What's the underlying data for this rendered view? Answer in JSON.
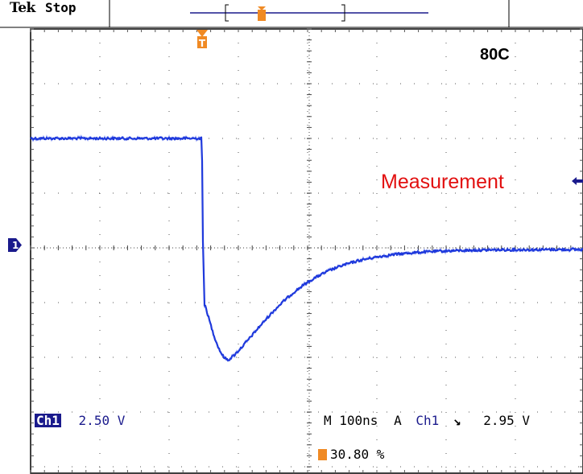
{
  "header": {
    "brand": "Tek",
    "status": "Stop"
  },
  "annotations": {
    "temperature": "80C",
    "measurement": "Measurement"
  },
  "readouts": {
    "channel": "Ch1",
    "volts_per_div": "2.50 V",
    "timebase": "M 100ns",
    "trigger_mode": "A",
    "trigger_source": "Ch1",
    "trigger_slope_symbol": "↙",
    "trigger_level": "2.95 V",
    "trigger_position": "30.80 %"
  },
  "colors": {
    "trace": "#1a33d6",
    "readout": "#1a1a8c",
    "trigger_marker": "#f08a24",
    "annotation": "#e21010"
  },
  "icons": {
    "trigger_marker": "trigger-t-icon",
    "ch1_marker": "channel-1-ground-marker-icon"
  }
}
